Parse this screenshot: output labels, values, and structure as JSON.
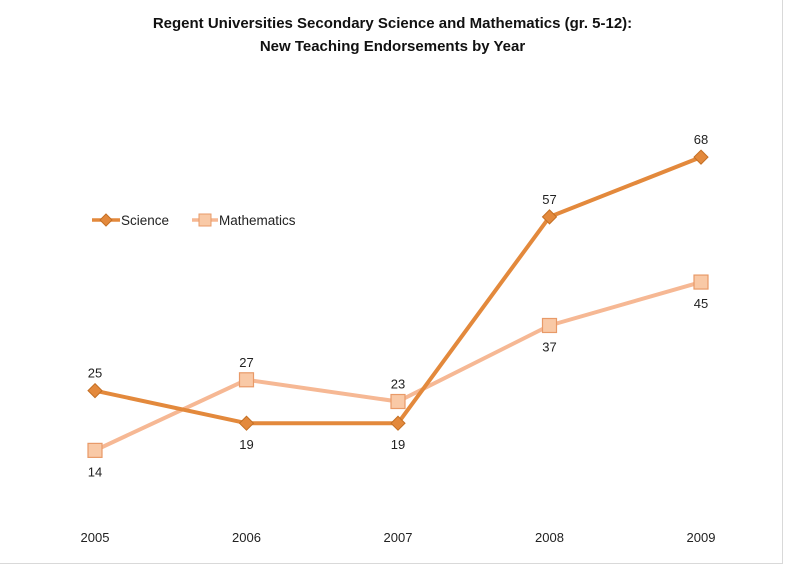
{
  "chart_data": {
    "type": "line",
    "title_line1": "Regent Universities Secondary Science and Mathematics (gr. 5-12):",
    "title_line2": "New Teaching Endorsements by Year",
    "xlabel": "",
    "ylabel": "",
    "categories": [
      "2005",
      "2006",
      "2007",
      "2008",
      "2009"
    ],
    "ylim": [
      0,
      80
    ],
    "grid": false,
    "legend_position": "left-middle",
    "series": [
      {
        "name": "Science",
        "values": [
          25,
          19,
          19,
          57,
          68
        ],
        "color": "#e3893c",
        "marker": "diamond",
        "label_position": [
          "above",
          "below",
          "below",
          "above",
          "above"
        ]
      },
      {
        "name": "Mathematics",
        "values": [
          14,
          27,
          23,
          37,
          45
        ],
        "color": "#f6b894",
        "marker_fill": "#f9c9a6",
        "marker_stroke": "#e89a68",
        "marker": "square",
        "label_position": [
          "below",
          "above",
          "above",
          "below",
          "below"
        ]
      }
    ]
  }
}
